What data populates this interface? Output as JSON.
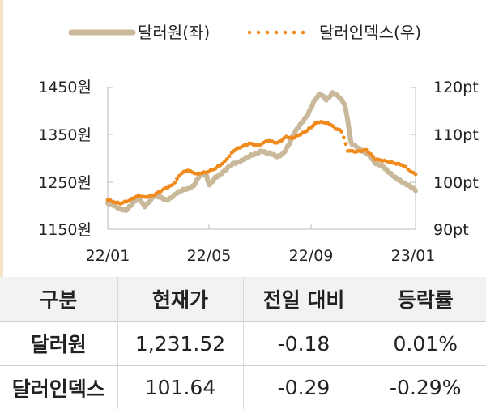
{
  "chart_data": {
    "type": "line",
    "x_ticks": [
      "22/01",
      "22/05",
      "22/09",
      "23/01"
    ],
    "y_left": {
      "ticks": [
        "1450원",
        "1350원",
        "1250원",
        "1150원"
      ],
      "range": [
        1150,
        1450
      ]
    },
    "y_right": {
      "ticks": [
        "120pt",
        "110pt",
        "100pt",
        "90pt"
      ],
      "range": [
        90,
        120
      ]
    },
    "series": [
      {
        "name": "달러원(좌)",
        "axis": "left",
        "color": "#c9b99a",
        "style": "solid",
        "points": [
          [
            0,
            1205
          ],
          [
            3,
            1195
          ],
          [
            6,
            1192
          ],
          [
            10,
            1214
          ],
          [
            12,
            1200
          ],
          [
            15,
            1220
          ],
          [
            19,
            1212
          ],
          [
            22,
            1225
          ],
          [
            26,
            1235
          ],
          [
            28,
            1245
          ],
          [
            30,
            1265
          ],
          [
            32,
            1262
          ],
          [
            33,
            1243
          ],
          [
            35,
            1262
          ],
          [
            38,
            1272
          ],
          [
            41,
            1290
          ],
          [
            44,
            1298
          ],
          [
            47,
            1305
          ],
          [
            50,
            1318
          ],
          [
            53,
            1308
          ],
          [
            55,
            1302
          ],
          [
            57,
            1312
          ],
          [
            59,
            1332
          ],
          [
            61,
            1355
          ],
          [
            63,
            1375
          ],
          [
            65,
            1395
          ],
          [
            67,
            1420
          ],
          [
            69,
            1435
          ],
          [
            71,
            1425
          ],
          [
            73,
            1440
          ],
          [
            75,
            1430
          ],
          [
            77,
            1412
          ],
          [
            78,
            1380
          ],
          [
            79,
            1335
          ],
          [
            81,
            1325
          ],
          [
            83,
            1312
          ],
          [
            85,
            1305
          ],
          [
            87,
            1292
          ],
          [
            89,
            1285
          ],
          [
            91,
            1270
          ],
          [
            93,
            1262
          ],
          [
            95,
            1255
          ],
          [
            97,
            1244
          ],
          [
            100,
            1231.52
          ]
        ]
      },
      {
        "name": "달러인덱스(우)",
        "axis": "right",
        "color": "#f08a1c",
        "style": "dotted",
        "points": [
          [
            0,
            96.2
          ],
          [
            4,
            95.6
          ],
          [
            7,
            96.0
          ],
          [
            10,
            97.0
          ],
          [
            12,
            96.8
          ],
          [
            15,
            97.4
          ],
          [
            18,
            98.3
          ],
          [
            21,
            99.2
          ],
          [
            24,
            102.0
          ],
          [
            26,
            102.6
          ],
          [
            29,
            101.6
          ],
          [
            32,
            101.9
          ],
          [
            35,
            103.0
          ],
          [
            38,
            104.4
          ],
          [
            41,
            106.5
          ],
          [
            43,
            107.2
          ],
          [
            46,
            108.3
          ],
          [
            49,
            107.8
          ],
          [
            52,
            108.6
          ],
          [
            55,
            108.2
          ],
          [
            58,
            109.7
          ],
          [
            60,
            109.3
          ],
          [
            62,
            109.8
          ],
          [
            64,
            110.4
          ],
          [
            66,
            111.6
          ],
          [
            68,
            112.8
          ],
          [
            70,
            112.7
          ],
          [
            72,
            112.2
          ],
          [
            74,
            111.2
          ],
          [
            76,
            110.8
          ],
          [
            78,
            106.8
          ],
          [
            81,
            106.4
          ],
          [
            84,
            106.6
          ],
          [
            87,
            104.9
          ],
          [
            90,
            104.6
          ],
          [
            93,
            103.9
          ],
          [
            96,
            103.4
          ],
          [
            100,
            101.64
          ]
        ]
      }
    ],
    "legend": [
      {
        "label": "달러원(좌)",
        "style": "solid",
        "color": "#c9b99a"
      },
      {
        "label": "달러인덱스(우)",
        "style": "dotted",
        "color": "#f08a1c"
      }
    ],
    "legend_position": "top"
  },
  "table": {
    "headers": [
      "구분",
      "현재가",
      "전일 대비",
      "등락률"
    ],
    "rows": [
      [
        "달러원",
        "1,231.52",
        "-0.18",
        "0.01%"
      ],
      [
        "달러인덱스",
        "101.64",
        "-0.29",
        "-0.29%"
      ]
    ]
  }
}
